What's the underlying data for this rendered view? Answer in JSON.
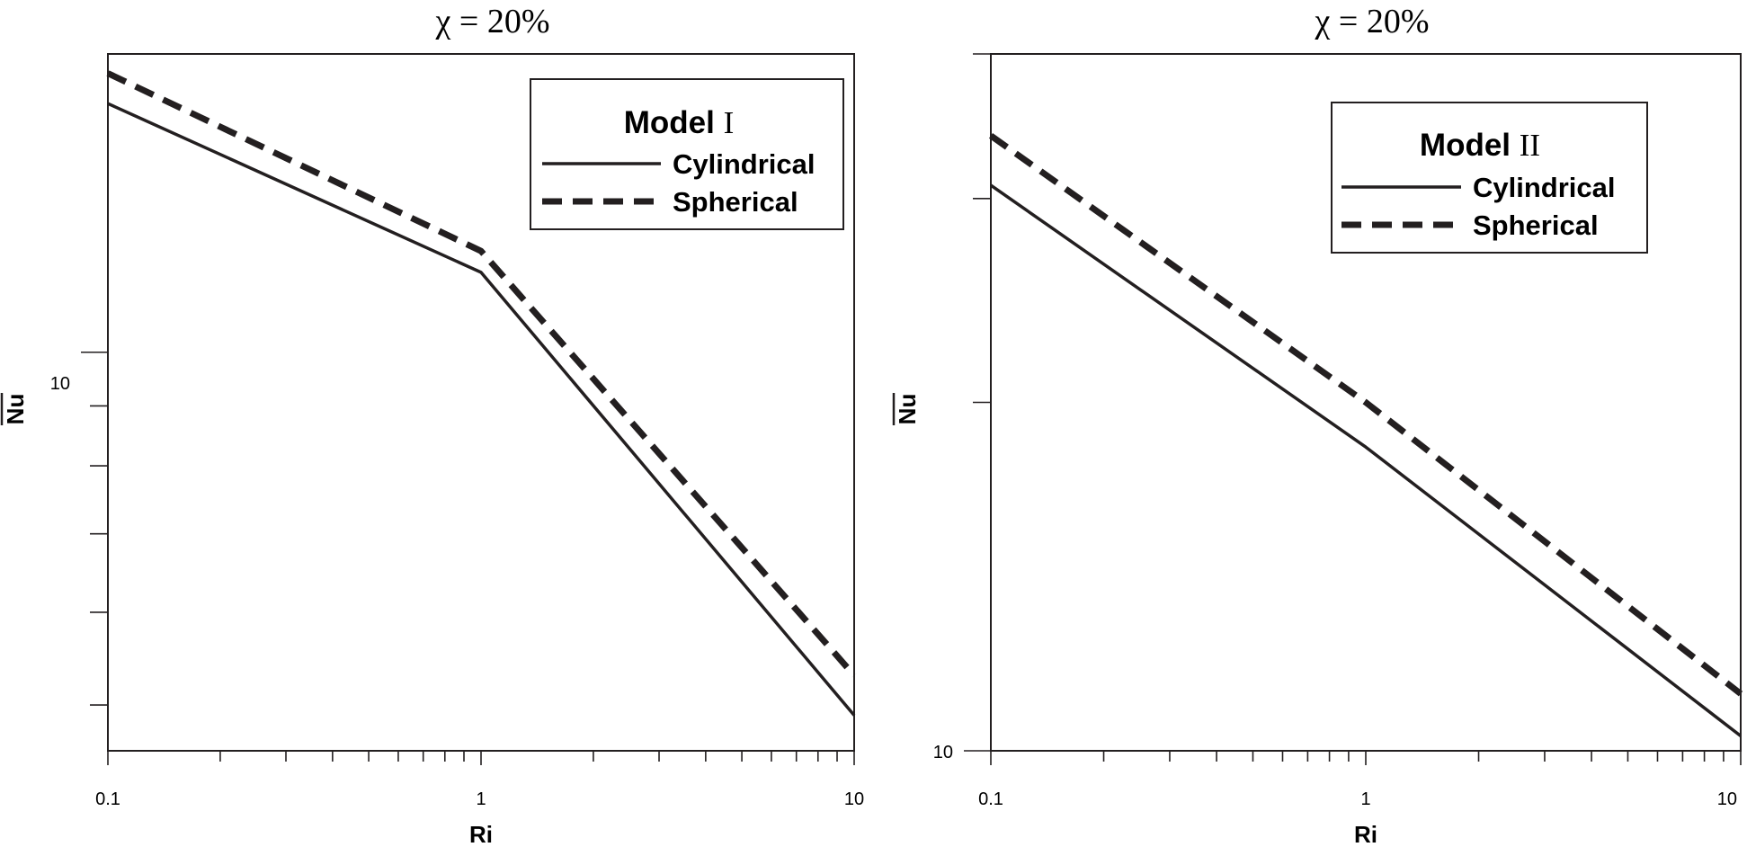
{
  "chart_data": [
    {
      "type": "line",
      "title": "χ = 20%",
      "xlabel": "Ri",
      "ylabel": "Nu",
      "xscale": "log",
      "yscale": "log",
      "xlim": [
        0.1,
        10
      ],
      "ylim": [
        4.57,
        17.97
      ],
      "x_tick_labels": [
        "0.1",
        "1",
        "10"
      ],
      "y_tick_labels": [
        "10"
      ],
      "legend": {
        "title": "Model",
        "title_numeral": "I",
        "position": "top-right"
      },
      "series": [
        {
          "name": "Cylindrical",
          "style": "solid",
          "x": [
            0.1,
            1,
            10
          ],
          "y": [
            16.3,
            11.7,
            4.9
          ]
        },
        {
          "name": "Spherical",
          "style": "dashed",
          "x": [
            0.1,
            1,
            10
          ],
          "y": [
            17.3,
            12.2,
            5.3
          ]
        }
      ]
    },
    {
      "type": "line",
      "title": "χ = 20%",
      "xlabel": "Ri",
      "ylabel": "Nu",
      "xscale": "log",
      "yscale": "log",
      "xlim": [
        0.1,
        10
      ],
      "ylim": [
        10,
        40
      ],
      "x_tick_labels": [
        "0.1",
        "1",
        "10"
      ],
      "y_tick_labels": [
        "10"
      ],
      "legend": {
        "title": "Model",
        "title_numeral": "II",
        "position": "top-right"
      },
      "series": [
        {
          "name": "Cylindrical",
          "style": "solid",
          "x": [
            0.1,
            1,
            10
          ],
          "y": [
            30.8,
            18.3,
            10.3
          ]
        },
        {
          "name": "Spherical",
          "style": "dashed",
          "x": [
            0.1,
            1,
            10
          ],
          "y": [
            34.0,
            20.0,
            11.2
          ]
        }
      ]
    }
  ]
}
